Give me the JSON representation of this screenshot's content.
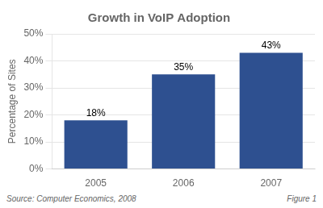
{
  "chart_data": {
    "type": "bar",
    "title": "Growth in VoIP Adoption",
    "categories": [
      "2005",
      "2006",
      "2007"
    ],
    "values": [
      18,
      35,
      43
    ],
    "value_labels": [
      "18%",
      "35%",
      "43%"
    ],
    "data_labels": true,
    "color": "#2E5090",
    "ylabel": "Percentage of Sites",
    "ylim": [
      0,
      50
    ],
    "yticks": [
      {
        "value": 0,
        "label": "0%"
      },
      {
        "value": 10,
        "label": "10%"
      },
      {
        "value": 20,
        "label": "20%"
      },
      {
        "value": 30,
        "label": "30%"
      },
      {
        "value": 40,
        "label": "40%"
      },
      {
        "value": 50,
        "label": "50%"
      }
    ],
    "grid": true,
    "annotations": [
      "Source: Computer Economics, 2008",
      "Figure 1"
    ]
  }
}
